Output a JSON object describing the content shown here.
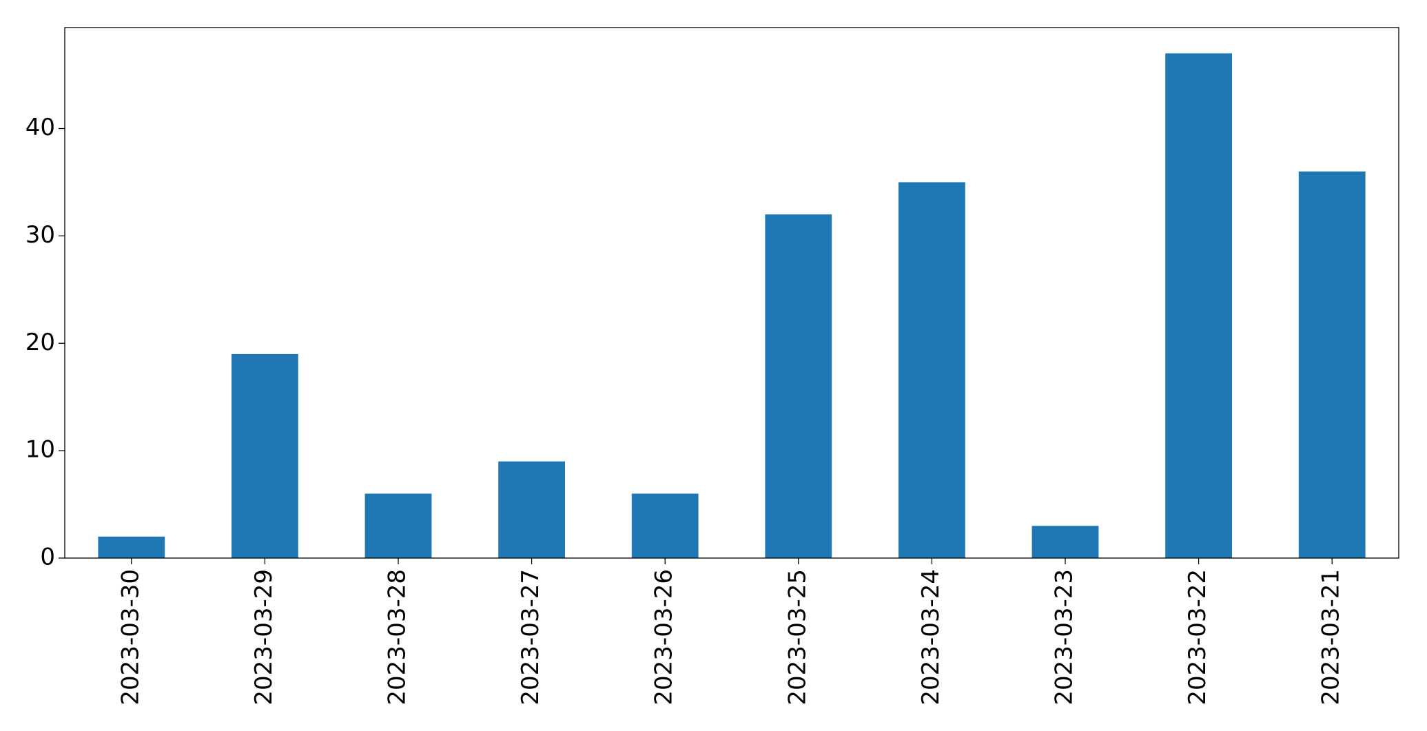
{
  "chart_data": {
    "type": "bar",
    "categories": [
      "2023-03-30",
      "2023-03-29",
      "2023-03-28",
      "2023-03-27",
      "2023-03-26",
      "2023-03-25",
      "2023-03-24",
      "2023-03-23",
      "2023-03-22",
      "2023-03-21"
    ],
    "values": [
      2,
      19,
      6,
      9,
      6,
      32,
      35,
      3,
      47,
      36
    ],
    "color": "#1f77b4",
    "ylim": [
      0,
      49.4
    ],
    "yticks": [
      0,
      10,
      20,
      30,
      40
    ],
    "grid": false
  }
}
